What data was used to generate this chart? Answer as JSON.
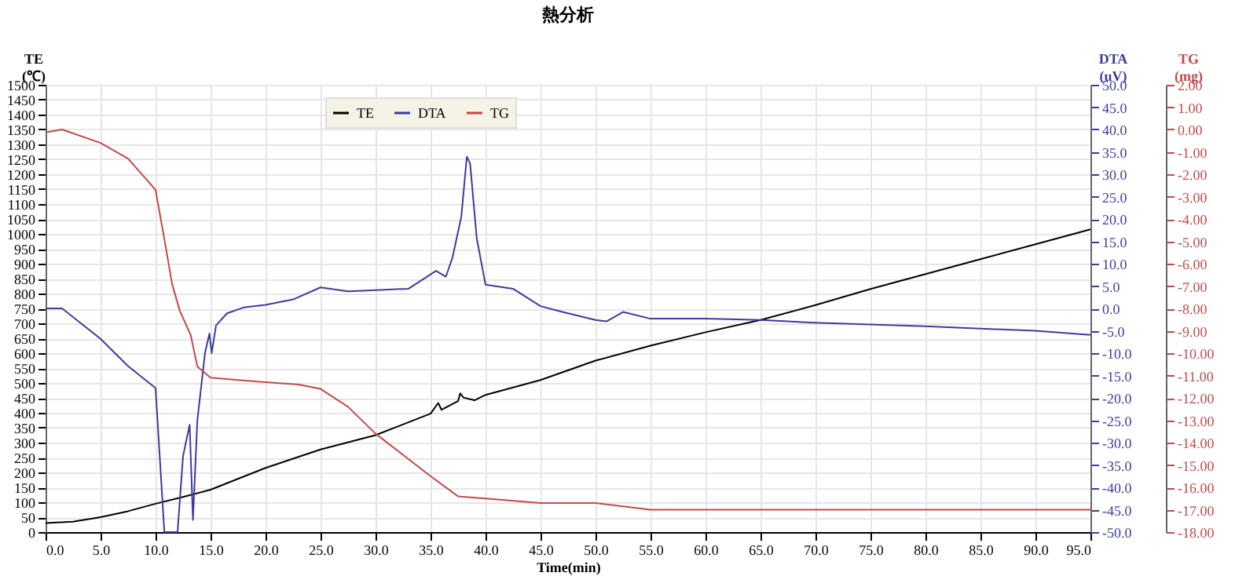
{
  "chart_data": {
    "type": "line",
    "title": "熱分析",
    "xlabel": "Time(min)",
    "ylabel": "TE (℃)",
    "y2label": "DTA (uV)",
    "y3label": "TG (mg)",
    "legend": "top left",
    "grid": true,
    "marker": "none",
    "line_style": "solid",
    "xlim": [
      0,
      95
    ],
    "xticks": [
      {
        "value": 0,
        "label": "0.0"
      },
      {
        "value": 5,
        "label": "5.0"
      },
      {
        "value": 10,
        "label": "10.0"
      },
      {
        "value": 15,
        "label": "15.0"
      },
      {
        "value": 20,
        "label": "20.0"
      },
      {
        "value": 25,
        "label": "25.0"
      },
      {
        "value": 30,
        "label": "30.0"
      },
      {
        "value": 35,
        "label": "35.0"
      },
      {
        "value": 40,
        "label": "40.0"
      },
      {
        "value": 45,
        "label": "45.0"
      },
      {
        "value": 50,
        "label": "50.0"
      },
      {
        "value": 55,
        "label": "55.0"
      },
      {
        "value": 60,
        "label": "60.0"
      },
      {
        "value": 65,
        "label": "65.0"
      },
      {
        "value": 70,
        "label": "70.0"
      },
      {
        "value": 75,
        "label": "75.0"
      },
      {
        "value": 80,
        "label": "80.0"
      },
      {
        "value": 85,
        "label": "85.0"
      },
      {
        "value": 90,
        "label": "90.0"
      },
      {
        "value": 95,
        "label": "95.0"
      }
    ],
    "ylim": [
      0,
      1500
    ],
    "yticks": [
      0,
      50,
      100,
      150,
      200,
      250,
      300,
      350,
      400,
      450,
      500,
      550,
      600,
      650,
      700,
      750,
      800,
      850,
      900,
      950,
      1000,
      1050,
      1100,
      1150,
      1200,
      1250,
      1300,
      1350,
      1400,
      1450,
      1500
    ],
    "y2lim": [
      -50,
      50
    ],
    "y2ticks": [
      {
        "value": -50,
        "label": "-50.0"
      },
      {
        "value": -45,
        "label": "-45.0"
      },
      {
        "value": -40,
        "label": "-40.0"
      },
      {
        "value": -35,
        "label": "-35.0"
      },
      {
        "value": -30,
        "label": "-30.0"
      },
      {
        "value": -25,
        "label": "-25.0"
      },
      {
        "value": -20,
        "label": "-20.0"
      },
      {
        "value": -15,
        "label": "-15.0"
      },
      {
        "value": -10,
        "label": "-10.0"
      },
      {
        "value": -5,
        "label": "-5.0"
      },
      {
        "value": 0,
        "label": "0.0"
      },
      {
        "value": 5,
        "label": "5.0"
      },
      {
        "value": 10,
        "label": "10.0"
      },
      {
        "value": 15,
        "label": "15.0"
      },
      {
        "value": 20,
        "label": "20.0"
      },
      {
        "value": 25,
        "label": "25.0"
      },
      {
        "value": 30,
        "label": "30.0"
      },
      {
        "value": 35,
        "label": "35.0"
      },
      {
        "value": 40,
        "label": "40.0"
      },
      {
        "value": 45,
        "label": "45.0"
      },
      {
        "value": 50,
        "label": "50.0"
      }
    ],
    "y3lim": [
      -18,
      2
    ],
    "y3ticks": [
      {
        "value": -18,
        "label": "-18.00"
      },
      {
        "value": -17,
        "label": "-17.00"
      },
      {
        "value": -16,
        "label": "-16.00"
      },
      {
        "value": -15,
        "label": "-15.00"
      },
      {
        "value": -14,
        "label": "-14.00"
      },
      {
        "value": -13,
        "label": "-13.00"
      },
      {
        "value": -12,
        "label": "-12.00"
      },
      {
        "value": -11,
        "label": "-11.00"
      },
      {
        "value": -10,
        "label": "-10.00"
      },
      {
        "value": -9,
        "label": "-9.00"
      },
      {
        "value": -8,
        "label": "-8.00"
      },
      {
        "value": -7,
        "label": "-7.00"
      },
      {
        "value": -6,
        "label": "-6.00"
      },
      {
        "value": -5,
        "label": "-5.00"
      },
      {
        "value": -4,
        "label": "-4.00"
      },
      {
        "value": -3,
        "label": "-3.00"
      },
      {
        "value": -2,
        "label": "-2.00"
      },
      {
        "value": -1,
        "label": "-1.00"
      },
      {
        "value": 0,
        "label": "0.00"
      },
      {
        "value": 1,
        "label": "1.00"
      },
      {
        "value": 2,
        "label": "2.00"
      }
    ],
    "series": [
      {
        "name": "TE",
        "color": "#000000",
        "x": [
          0,
          2.5,
          5,
          7.5,
          10,
          12.5,
          15,
          20,
          25,
          30,
          35,
          35.7,
          36,
          37.5,
          37.7,
          38,
          39,
          40,
          45,
          50,
          55,
          60,
          65,
          70,
          75,
          80,
          85,
          90,
          95
        ],
        "values": [
          30,
          35,
          50,
          70,
          95,
          118,
          142,
          215,
          277,
          325,
          397,
          433,
          410,
          439,
          465,
          451,
          442,
          460,
          510,
          575,
          625,
          670,
          711,
          761,
          815,
          865,
          915,
          965,
          1015
        ]
      },
      {
        "name": "DTA",
        "color": "#3c3c9c",
        "axis": "y2",
        "x": [
          0,
          1.5,
          5,
          7.5,
          10,
          10.8,
          12,
          12.5,
          13.1,
          13.4,
          13.8,
          14.5,
          14.9,
          15.1,
          15.5,
          16.5,
          18,
          20,
          22.5,
          25,
          27.5,
          30,
          33,
          35.5,
          36.4,
          37,
          37.8,
          38.3,
          38.6,
          39.2,
          40,
          42.5,
          45,
          47,
          50,
          51,
          52.5,
          55,
          60,
          65,
          70,
          80,
          90,
          95
        ],
        "values": [
          0,
          0,
          -6.8,
          -12.9,
          -17.8,
          -50,
          -50,
          -33,
          -26,
          -47.3,
          -25,
          -9.9,
          -5.6,
          -10,
          -3.8,
          -1.1,
          0.2,
          0.8,
          2,
          4.7,
          3.8,
          4.1,
          4.4,
          8.4,
          7.1,
          11.4,
          20.5,
          33.9,
          32.4,
          15.7,
          5.3,
          4.4,
          0.5,
          -0.8,
          -2.6,
          -2.9,
          -0.8,
          -2.3,
          -2.3,
          -2.6,
          -3.2,
          -4,
          -5,
          -5.9
        ]
      },
      {
        "name": "TG",
        "color": "#c04a4a",
        "axis": "y3",
        "x": [
          0,
          1.5,
          5,
          7.5,
          10,
          10.8,
          11.5,
          12.2,
          13.2,
          13.8,
          15,
          17.5,
          20,
          23,
          25,
          27.5,
          30,
          35,
          37.5,
          40,
          45,
          50,
          55,
          60,
          70,
          80,
          90,
          95
        ],
        "values": [
          -0.13,
          0,
          -0.6,
          -1.3,
          -2.7,
          -4.9,
          -6.9,
          -8.1,
          -9.2,
          -10.6,
          -11.1,
          -11.2,
          -11.3,
          -11.4,
          -11.6,
          -12.4,
          -13.6,
          -15.5,
          -16.4,
          -16.5,
          -16.7,
          -16.7,
          -17,
          -17,
          -17,
          -17,
          -17,
          -17
        ]
      }
    ]
  }
}
